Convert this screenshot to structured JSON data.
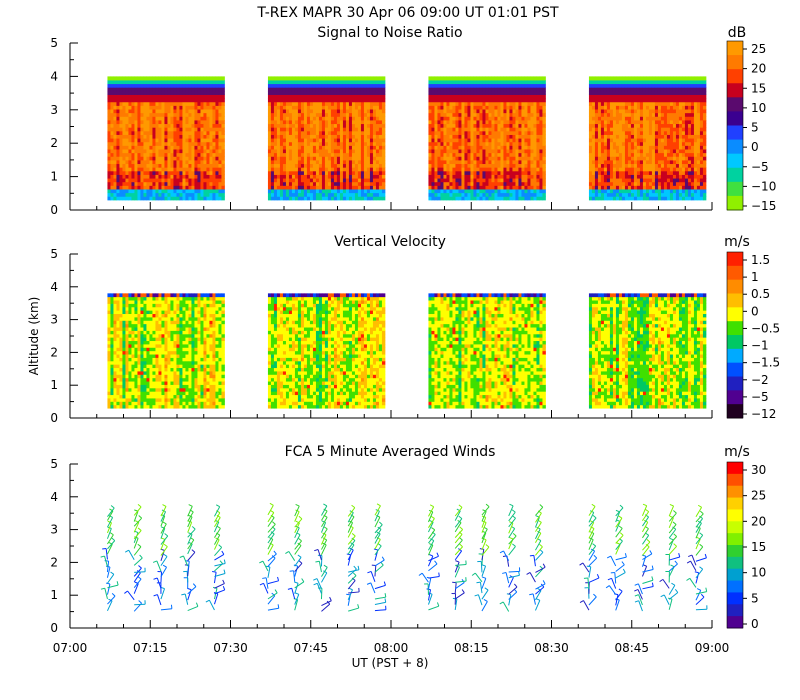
{
  "header": {
    "title_line": "T-REX   MAPR 30 Apr 06   09:00 UT   01:01   PST"
  },
  "colors": {
    "axis": "#000000",
    "background": "#ffffff",
    "palette_rainbow": [
      "#7f0000",
      "#c81e00",
      "#ff3000",
      "#ff8000",
      "#ffb000",
      "#ffe000",
      "#ffff00",
      "#c8ff00",
      "#40e040",
      "#20c050",
      "#00c0c0",
      "#0090ff",
      "#0040ff",
      "#2020c0",
      "#400090",
      "#600060"
    ]
  },
  "chart_data": [
    {
      "type": "heatmap",
      "title": "Signal to Noise Ratio",
      "ylabel": "",
      "ylim": [
        0,
        5
      ],
      "yticks": [
        "0",
        "1",
        "2",
        "3",
        "4",
        "5"
      ],
      "xlim_minutes": [
        420,
        540
      ],
      "data_segments_ut": [
        [
          "07:07",
          "07:29"
        ],
        [
          "07:37",
          "07:59"
        ],
        [
          "08:07",
          "08:29"
        ],
        [
          "08:37",
          "08:59"
        ]
      ],
      "data_altitude_range_km": [
        0.3,
        4.0
      ],
      "colorbar_unit": "dB",
      "colorbar_labels": [
        "25",
        "20",
        "15",
        "10",
        "5",
        "0",
        "−5",
        "−10",
        "−15"
      ],
      "colorbar_colors": [
        "#ff9900",
        "#ff7a00",
        "#ff4000",
        "#c8001e",
        "#5a0a6e",
        "#3a0090",
        "#2040ff",
        "#0a8cff",
        "#00c8ff",
        "#00d2a0",
        "#40e040",
        "#90f000"
      ]
    },
    {
      "type": "heatmap",
      "title": "Vertical Velocity",
      "ylabel": "Altitude (km)",
      "ylim": [
        0,
        5
      ],
      "yticks": [
        "0",
        "1",
        "2",
        "3",
        "4",
        "5"
      ],
      "xlim_minutes": [
        420,
        540
      ],
      "data_segments_ut": [
        [
          "07:07",
          "07:29"
        ],
        [
          "07:37",
          "07:59"
        ],
        [
          "08:07",
          "08:29"
        ],
        [
          "08:37",
          "08:59"
        ]
      ],
      "data_altitude_range_km": [
        0.3,
        3.8
      ],
      "colorbar_unit": "m/s",
      "colorbar_labels": [
        "1.5",
        "1",
        "0.5",
        "0",
        "−0.5",
        "−1",
        "−1.5",
        "−2",
        "−5",
        "−12"
      ],
      "colorbar_colors": [
        "#ff2000",
        "#ff5a00",
        "#ff8c00",
        "#ffbe00",
        "#ffff00",
        "#40e000",
        "#00c864",
        "#00aaff",
        "#0050ff",
        "#2020c0",
        "#500090",
        "#200020"
      ]
    },
    {
      "type": "scatter",
      "title": "FCA 5 Minute Averaged Winds",
      "ylabel": "",
      "ylim": [
        0,
        5
      ],
      "yticks": [
        "0",
        "1",
        "2",
        "3",
        "4",
        "5"
      ],
      "xlim_minutes": [
        420,
        540
      ],
      "xticks": [
        "07:00",
        "07:15",
        "07:30",
        "07:45",
        "08:00",
        "08:15",
        "08:30",
        "08:45",
        "09:00"
      ],
      "xlabel": "UT  (PST + 8)",
      "profile_times_ut": [
        "07:07",
        "07:12",
        "07:17",
        "07:22",
        "07:27",
        "07:37",
        "07:42",
        "07:47",
        "07:52",
        "07:57",
        "08:07",
        "08:12",
        "08:17",
        "08:22",
        "08:27",
        "08:37",
        "08:42",
        "08:47",
        "08:52",
        "08:57"
      ],
      "colorbar_unit": "m/s",
      "colorbar_labels": [
        "30",
        "25",
        "20",
        "15",
        "10",
        "5",
        "0"
      ],
      "colorbar_colors": [
        "#ff0000",
        "#ff5000",
        "#ff9000",
        "#ffd000",
        "#ffff00",
        "#c8ff00",
        "#80f000",
        "#30d030",
        "#10c080",
        "#00a0d0",
        "#0070ff",
        "#0030ff",
        "#2020c0",
        "#500090"
      ]
    }
  ]
}
